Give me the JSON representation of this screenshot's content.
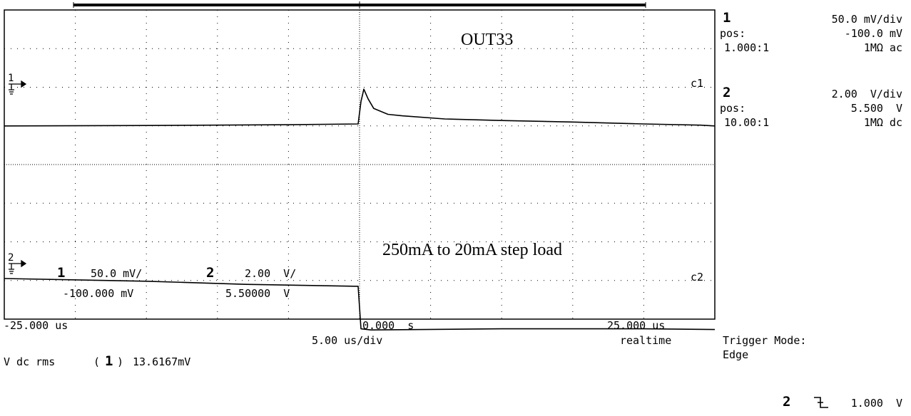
{
  "chart_data": {
    "type": "line",
    "title": "OUT33",
    "annotation": "250mA to 20mA step load",
    "x_unit": "us",
    "xlim": [
      -25,
      25
    ],
    "divisions": {
      "x": 10,
      "y": 8
    },
    "grid": true,
    "series": [
      {
        "name": "c1",
        "color": "#000000",
        "volts_per_div": "50.0 mV/div",
        "points": [
          [
            -25,
            1.0
          ],
          [
            -15,
            1.01
          ],
          [
            -5,
            1.03
          ],
          [
            -0.1,
            1.05
          ],
          [
            0.1,
            1.63
          ],
          [
            0.3,
            1.95
          ],
          [
            0.6,
            1.7
          ],
          [
            1.0,
            1.45
          ],
          [
            2,
            1.3
          ],
          [
            3,
            1.26
          ],
          [
            6,
            1.18
          ],
          [
            10,
            1.14
          ],
          [
            15,
            1.1
          ],
          [
            20,
            1.05
          ],
          [
            24,
            1.02
          ],
          [
            25,
            1.0
          ]
        ]
      },
      {
        "name": "c2",
        "color": "#000000",
        "volts_per_div": "2.00 V/div",
        "points": [
          [
            -25,
            -2.95
          ],
          [
            -15,
            -3.02
          ],
          [
            -8,
            -3.1
          ],
          [
            -0.1,
            -3.15
          ],
          [
            0.1,
            -4.25
          ],
          [
            0.8,
            -4.28
          ],
          [
            10,
            -4.25
          ],
          [
            20,
            -4.25
          ],
          [
            25,
            -4.27
          ]
        ]
      }
    ],
    "trace_labels": [
      "c1",
      "c2"
    ],
    "ground_markers": [
      "1",
      "2"
    ]
  },
  "overlay": {
    "ch1_num": "1",
    "ch1_scale": "50.0 mV/",
    "ch1_offset": "-100.000 mV",
    "ch2_num": "2",
    "ch2_scale": "2.00  V/",
    "ch2_offset": "5.50000  V"
  },
  "xaxis": {
    "left": "-25.000 us",
    "center": "0.000  s",
    "right": "25.000 us",
    "timebase": "5.00 us/div",
    "acq": "realtime"
  },
  "measurement": {
    "label": "V dc rms",
    "channel": "1",
    "value": "13.6167mV"
  },
  "side_panel": {
    "ch1": {
      "num": "1",
      "scale": "50.0 mV/div",
      "pos_label": "pos:",
      "pos_value": "-100.0 mV",
      "probe": "1.000:1",
      "coupling": "1MΩ ac"
    },
    "ch2": {
      "num": "2",
      "scale": "2.00  V/div",
      "pos_label": "pos:",
      "pos_value": "5.500  V",
      "probe": "10.00:1",
      "coupling": "1MΩ dc"
    },
    "trigger": {
      "mode_label": "Trigger Mode:",
      "mode_value": "Edge",
      "source": "2",
      "slope_icon": "falling-edge-icon",
      "level": "1.000  V"
    }
  }
}
